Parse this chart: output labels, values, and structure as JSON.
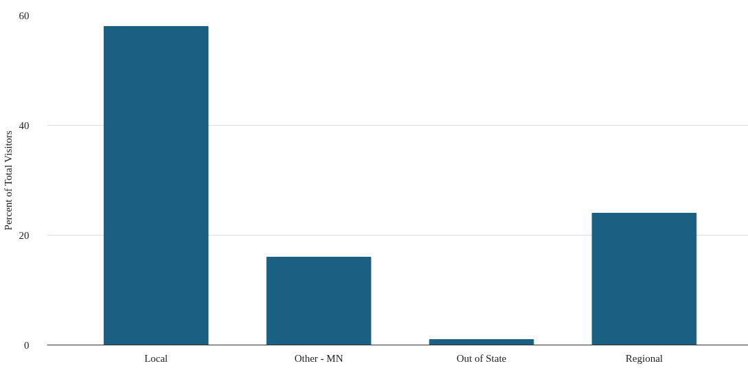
{
  "chart_data": {
    "type": "bar",
    "ylabel": "Percent of Total Visitors",
    "categories": [
      "Local",
      "Other - MN",
      "Out of State",
      "Regional"
    ],
    "values": [
      58,
      16,
      1,
      24
    ],
    "color": "#1b5f82",
    "ylim": [
      0,
      60
    ],
    "yticks": [
      0,
      20,
      40,
      60
    ],
    "grid": "y"
  }
}
